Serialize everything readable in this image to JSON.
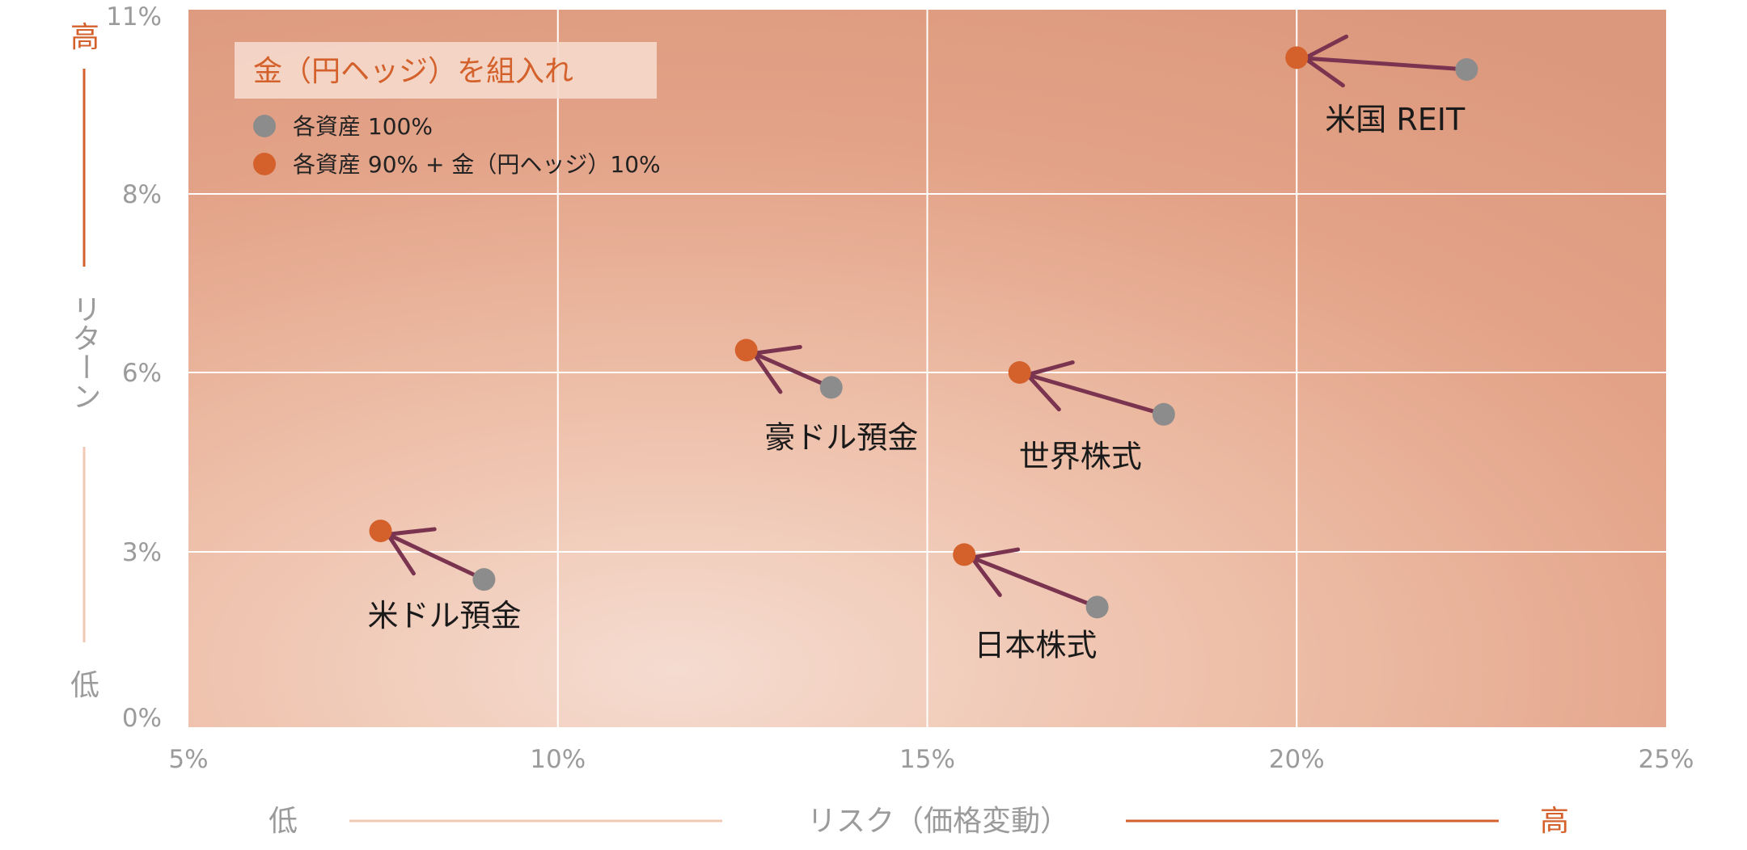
{
  "chart_data": {
    "type": "scatter",
    "xlabel": "リスク（価格変動）",
    "ylabel": "リターン",
    "x_low_label": "低",
    "x_high_label": "高",
    "y_low_label": "低",
    "y_high_label": "高",
    "xlim": [
      5,
      25
    ],
    "ylim": [
      0,
      11
    ],
    "x_ticks": [
      5,
      10,
      15,
      20,
      25
    ],
    "x_tick_labels": [
      "5%",
      "10%",
      "15%",
      "20%",
      "25%"
    ],
    "y_ticks": [
      0,
      3,
      6,
      8,
      11
    ],
    "y_tick_labels": [
      "0%",
      "3%",
      "6%",
      "8%",
      "11%"
    ],
    "grid": true,
    "legend": {
      "title": "金（円ヘッジ）を組入れ",
      "placement": "top-left",
      "entries": [
        "各資産 100%",
        "各資産 90% + 金（円ヘッジ）10%"
      ]
    },
    "colors": {
      "series_100": "#8c8c8c",
      "series_90": "#d4612b",
      "arrow": "#7a3450",
      "grid": "#ffffff",
      "accent": "#d4612b"
    },
    "series": [
      {
        "name": "各資産 100%",
        "points": [
          {
            "label": "米国 REIT",
            "x": 22.3,
            "y": 10.1
          },
          {
            "label": "豪ドル預金",
            "x": 13.7,
            "y": 5.75
          },
          {
            "label": "世界株式",
            "x": 18.2,
            "y": 5.3
          },
          {
            "label": "米ドル預金",
            "x": 9.0,
            "y": 2.5
          },
          {
            "label": "日本株式",
            "x": 17.3,
            "y": 2.0
          }
        ]
      },
      {
        "name": "各資産 90% + 金（円ヘッジ）10%",
        "points": [
          {
            "label": "米国 REIT",
            "x": 20.0,
            "y": 10.3
          },
          {
            "label": "豪ドル預金",
            "x": 12.55,
            "y": 6.25
          },
          {
            "label": "世界株式",
            "x": 16.25,
            "y": 6.0
          },
          {
            "label": "米ドル預金",
            "x": 7.6,
            "y": 3.35
          },
          {
            "label": "日本株式",
            "x": 15.5,
            "y": 2.95
          }
        ]
      }
    ]
  }
}
